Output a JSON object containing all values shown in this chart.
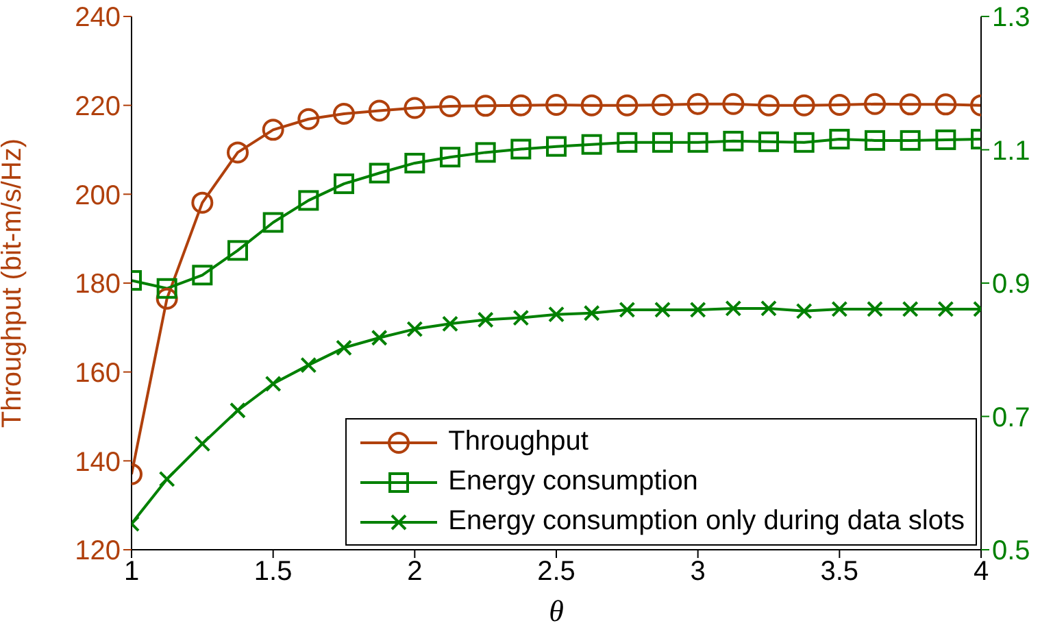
{
  "chart_data": {
    "type": "line",
    "xlabel": "θ",
    "ylabel": "Throughput (bit-m/s/Hz)",
    "x": [
      1,
      1.125,
      1.25,
      1.375,
      1.5,
      1.625,
      1.75,
      1.875,
      2,
      2.125,
      2.25,
      2.375,
      2.5,
      2.625,
      2.75,
      2.875,
      3,
      3.125,
      3.25,
      3.375,
      3.5,
      3.625,
      3.75,
      3.875,
      4
    ],
    "series": [
      {
        "name": "Throughput",
        "color": "#b0400c",
        "marker": "circle",
        "values": [
          137,
          176.5,
          198.1,
          209.4,
          214.5,
          216.9,
          218.1,
          218.8,
          219.4,
          219.8,
          219.9,
          220,
          220.1,
          220,
          220,
          220.1,
          220.3,
          220.3,
          220,
          220,
          220.1,
          220.3,
          220.2,
          220.2,
          220
        ]
      },
      {
        "name": "Energy consumption",
        "color": "#008000",
        "marker": "square",
        "axis": "y2",
        "values": [
          0.904,
          0.892,
          0.912,
          0.949,
          0.991,
          1.024,
          1.049,
          1.065,
          1.08,
          1.089,
          1.096,
          1.101,
          1.105,
          1.108,
          1.111,
          1.111,
          1.111,
          1.113,
          1.112,
          1.111,
          1.116,
          1.114,
          1.114,
          1.115,
          1.116
        ]
      },
      {
        "name": "Energy consumption only during data slots",
        "color": "#008000",
        "marker": "cross",
        "axis": "y2",
        "values": [
          0.539,
          0.606,
          0.659,
          0.709,
          0.749,
          0.777,
          0.803,
          0.818,
          0.831,
          0.839,
          0.845,
          0.848,
          0.853,
          0.855,
          0.86,
          0.86,
          0.86,
          0.862,
          0.862,
          0.858,
          0.861,
          0.861,
          0.861,
          0.861,
          0.861
        ]
      }
    ],
    "xlim": [
      1,
      4
    ],
    "xticks": [
      1,
      1.5,
      2,
      2.5,
      3,
      3.5,
      4
    ],
    "ylim": [
      120,
      240
    ],
    "yticks": [
      120,
      140,
      160,
      180,
      200,
      220,
      240
    ],
    "y2lim": [
      0.5,
      1.3
    ],
    "y2ticks": [
      0.5,
      0.7,
      0.9,
      1.1,
      1.3
    ],
    "grid": false,
    "legend": "bottom right"
  }
}
